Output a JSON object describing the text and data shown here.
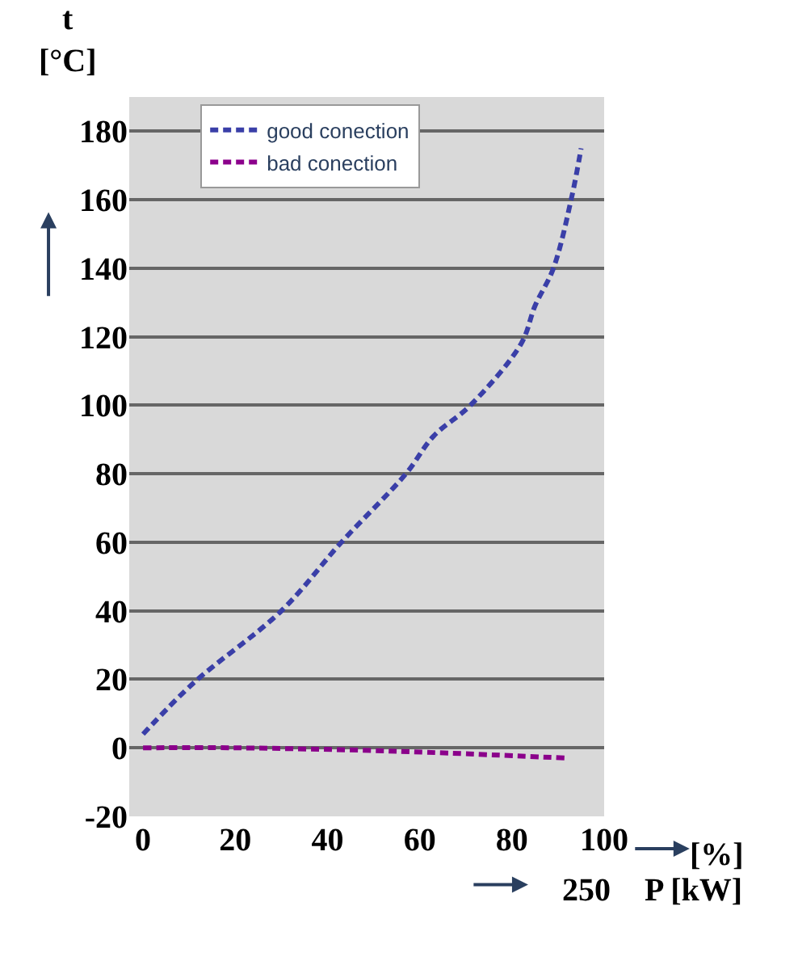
{
  "chart_data": {
    "type": "line",
    "ylabel": "t [°C]",
    "xlabel": "[%]",
    "annotations": [
      "250",
      "P [kW]"
    ],
    "xlim": [
      -3,
      100
    ],
    "xticks": [
      0,
      20,
      40,
      60,
      80,
      100
    ],
    "ylim": [
      -20,
      190
    ],
    "yticks": [
      -20,
      0,
      20,
      40,
      60,
      80,
      100,
      120,
      140,
      160,
      180
    ],
    "grid": "y",
    "legend": "top left",
    "line_style": "dashed",
    "marker": "none",
    "series": [
      {
        "name": "good conection",
        "color": "#3a3fa8",
        "x": [
          0,
          11,
          30,
          43,
          57,
          63,
          71,
          82,
          85,
          89,
          93,
          95
        ],
        "values": [
          4,
          19,
          40,
          60,
          80,
          91,
          100,
          118,
          129,
          140,
          161,
          175
        ]
      },
      {
        "name": "bad conection",
        "color": "#8b008b",
        "x": [
          0,
          20,
          55,
          92
        ],
        "values": [
          0,
          0,
          -1,
          -3
        ]
      }
    ]
  }
}
